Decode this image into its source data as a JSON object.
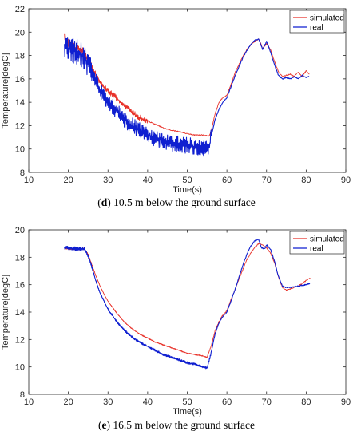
{
  "chart_data": [
    {
      "type": "line",
      "panel": "d",
      "caption_label": "d",
      "caption_text": " 10.5 m below the ground surface",
      "xlabel": "Time(s)",
      "ylabel": "Temperature[degC]",
      "xlim": [
        10,
        90
      ],
      "ylim": [
        8,
        22
      ],
      "xticks": [
        10,
        20,
        30,
        40,
        50,
        60,
        70,
        80,
        90
      ],
      "yticks": [
        8,
        10,
        12,
        14,
        16,
        18,
        20,
        22
      ],
      "grid": false,
      "legend_position": "top-right",
      "series": [
        {
          "name": "simulated",
          "color": "#e8322a",
          "noise": 0.25,
          "noise_until": 40,
          "points": [
            [
              19,
              19.8
            ],
            [
              20,
              19.0
            ],
            [
              21,
              18.8
            ],
            [
              22,
              18.6
            ],
            [
              23,
              18.5
            ],
            [
              24,
              18.2
            ],
            [
              25,
              17.6
            ],
            [
              26,
              17.0
            ],
            [
              27,
              16.3
            ],
            [
              28,
              15.7
            ],
            [
              29,
              15.3
            ],
            [
              30,
              15.0
            ],
            [
              31,
              14.7
            ],
            [
              32,
              14.4
            ],
            [
              33,
              14.1
            ],
            [
              34,
              13.7
            ],
            [
              35,
              13.5
            ],
            [
              36,
              13.2
            ],
            [
              37,
              12.9
            ],
            [
              38,
              12.7
            ],
            [
              40,
              12.4
            ],
            [
              42,
              12.1
            ],
            [
              44,
              11.8
            ],
            [
              46,
              11.6
            ],
            [
              48,
              11.5
            ],
            [
              50,
              11.3
            ],
            [
              52,
              11.2
            ],
            [
              54,
              11.2
            ],
            [
              55.5,
              11.1
            ],
            [
              56,
              11.5
            ],
            [
              57,
              13.0
            ],
            [
              58,
              14.0
            ],
            [
              59,
              14.4
            ],
            [
              60,
              14.6
            ],
            [
              61,
              15.5
            ],
            [
              62,
              16.5
            ],
            [
              63,
              17.2
            ],
            [
              64,
              17.9
            ],
            [
              65,
              18.5
            ],
            [
              66,
              18.9
            ],
            [
              67,
              19.2
            ],
            [
              67.5,
              19.3
            ],
            [
              68,
              19.4
            ],
            [
              68.5,
              19.1
            ],
            [
              69,
              18.6
            ],
            [
              70,
              19.0
            ],
            [
              71,
              18.5
            ],
            [
              72,
              17.5
            ],
            [
              73,
              16.6
            ],
            [
              74,
              16.2
            ],
            [
              75,
              16.3
            ],
            [
              76,
              16.4
            ],
            [
              77,
              16.2
            ],
            [
              78,
              16.6
            ],
            [
              79,
              16.2
            ],
            [
              80,
              16.7
            ],
            [
              80.8,
              16.4
            ]
          ]
        },
        {
          "name": "real",
          "color": "#0f1fd0",
          "noise": 0.7,
          "noise_until": 56,
          "points": [
            [
              19,
              18.7
            ],
            [
              20,
              18.6
            ],
            [
              21,
              18.5
            ],
            [
              22,
              18.3
            ],
            [
              23,
              18.2
            ],
            [
              24,
              17.9
            ],
            [
              25,
              17.2
            ],
            [
              26,
              16.5
            ],
            [
              27,
              15.8
            ],
            [
              28,
              15.0
            ],
            [
              29,
              14.5
            ],
            [
              30,
              14.0
            ],
            [
              31,
              13.6
            ],
            [
              32,
              13.3
            ],
            [
              33,
              13.0
            ],
            [
              34,
              12.6
            ],
            [
              35,
              12.3
            ],
            [
              36,
              12.0
            ],
            [
              37,
              11.8
            ],
            [
              38,
              11.6
            ],
            [
              40,
              11.2
            ],
            [
              42,
              10.9
            ],
            [
              44,
              10.7
            ],
            [
              46,
              10.5
            ],
            [
              48,
              10.4
            ],
            [
              50,
              10.3
            ],
            [
              52,
              10.2
            ],
            [
              54,
              10.0
            ],
            [
              55.5,
              10.0
            ],
            [
              56,
              11.0
            ],
            [
              57,
              12.5
            ],
            [
              58,
              13.4
            ],
            [
              59,
              14.0
            ],
            [
              60,
              14.4
            ],
            [
              61,
              15.3
            ],
            [
              62,
              16.2
            ],
            [
              63,
              17.0
            ],
            [
              64,
              17.8
            ],
            [
              65,
              18.4
            ],
            [
              66,
              18.9
            ],
            [
              67,
              19.3
            ],
            [
              68,
              19.4
            ],
            [
              68.5,
              19.0
            ],
            [
              69,
              18.5
            ],
            [
              70,
              19.2
            ],
            [
              71,
              18.3
            ],
            [
              72,
              17.2
            ],
            [
              73,
              16.3
            ],
            [
              74,
              16.0
            ],
            [
              75,
              16.1
            ],
            [
              76,
              16.0
            ],
            [
              77,
              16.2
            ],
            [
              78,
              16.0
            ],
            [
              79,
              16.3
            ],
            [
              80,
              16.1
            ],
            [
              80.8,
              16.2
            ]
          ]
        }
      ]
    },
    {
      "type": "line",
      "panel": "e",
      "caption_label": "e",
      "caption_text": " 16.5 m below the ground surface",
      "xlabel": "Time(s)",
      "ylabel": "Temperature[degC]",
      "xlim": [
        10,
        90
      ],
      "ylim": [
        8,
        20
      ],
      "xticks": [
        10,
        20,
        30,
        40,
        50,
        60,
        70,
        80,
        90
      ],
      "yticks": [
        8,
        10,
        12,
        14,
        16,
        18,
        20
      ],
      "grid": false,
      "legend_position": "top-right",
      "series": [
        {
          "name": "simulated",
          "color": "#e8322a",
          "noise": 0.04,
          "noise_until": 56,
          "points": [
            [
              19,
              18.65
            ],
            [
              21,
              18.6
            ],
            [
              23,
              18.6
            ],
            [
              24,
              18.6
            ],
            [
              25,
              18.2
            ],
            [
              26,
              17.4
            ],
            [
              27,
              16.6
            ],
            [
              28,
              15.9
            ],
            [
              29,
              15.3
            ],
            [
              30,
              14.8
            ],
            [
              32,
              14.0
            ],
            [
              34,
              13.3
            ],
            [
              36,
              12.8
            ],
            [
              38,
              12.4
            ],
            [
              40,
              12.1
            ],
            [
              42,
              11.8
            ],
            [
              44,
              11.6
            ],
            [
              46,
              11.4
            ],
            [
              48,
              11.2
            ],
            [
              50,
              11.0
            ],
            [
              52,
              10.9
            ],
            [
              54,
              10.8
            ],
            [
              55,
              10.7
            ],
            [
              56,
              11.5
            ],
            [
              57,
              12.6
            ],
            [
              58,
              13.3
            ],
            [
              59,
              13.8
            ],
            [
              60,
              14.1
            ],
            [
              61,
              14.9
            ],
            [
              62,
              15.6
            ],
            [
              63,
              16.4
            ],
            [
              64,
              17.1
            ],
            [
              65,
              17.8
            ],
            [
              66,
              18.3
            ],
            [
              67,
              18.7
            ],
            [
              68,
              19.0
            ],
            [
              69,
              18.9
            ],
            [
              70,
              18.7
            ],
            [
              71,
              18.3
            ],
            [
              72,
              17.6
            ],
            [
              73,
              16.6
            ],
            [
              74,
              15.8
            ],
            [
              75,
              15.6
            ],
            [
              76,
              15.7
            ],
            [
              78,
              15.9
            ],
            [
              80,
              16.3
            ],
            [
              81,
              16.5
            ]
          ]
        },
        {
          "name": "real",
          "color": "#0f1fd0",
          "noise": 0.08,
          "noise_until": 56,
          "points": [
            [
              19,
              18.7
            ],
            [
              21,
              18.65
            ],
            [
              23,
              18.6
            ],
            [
              24,
              18.6
            ],
            [
              25,
              18.1
            ],
            [
              26,
              17.2
            ],
            [
              27,
              16.2
            ],
            [
              28,
              15.4
            ],
            [
              29,
              14.8
            ],
            [
              30,
              14.2
            ],
            [
              32,
              13.4
            ],
            [
              34,
              12.7
            ],
            [
              36,
              12.2
            ],
            [
              38,
              11.8
            ],
            [
              40,
              11.5
            ],
            [
              42,
              11.2
            ],
            [
              44,
              10.9
            ],
            [
              46,
              10.7
            ],
            [
              48,
              10.5
            ],
            [
              50,
              10.3
            ],
            [
              52,
              10.2
            ],
            [
              54,
              10.0
            ],
            [
              55,
              9.9
            ],
            [
              56,
              11.0
            ],
            [
              57,
              12.4
            ],
            [
              58,
              13.2
            ],
            [
              59,
              13.7
            ],
            [
              60,
              14.0
            ],
            [
              61,
              14.8
            ],
            [
              62,
              15.6
            ],
            [
              63,
              16.5
            ],
            [
              64,
              17.4
            ],
            [
              65,
              18.2
            ],
            [
              66,
              18.8
            ],
            [
              67,
              19.2
            ],
            [
              68,
              19.3
            ],
            [
              68.7,
              18.7
            ],
            [
              69.5,
              18.6
            ],
            [
              70,
              18.9
            ],
            [
              71,
              18.6
            ],
            [
              72,
              17.7
            ],
            [
              73,
              16.6
            ],
            [
              74,
              15.9
            ],
            [
              75,
              15.8
            ],
            [
              76,
              15.8
            ],
            [
              78,
              15.9
            ],
            [
              80,
              16.0
            ],
            [
              81,
              16.1
            ]
          ]
        }
      ]
    }
  ]
}
